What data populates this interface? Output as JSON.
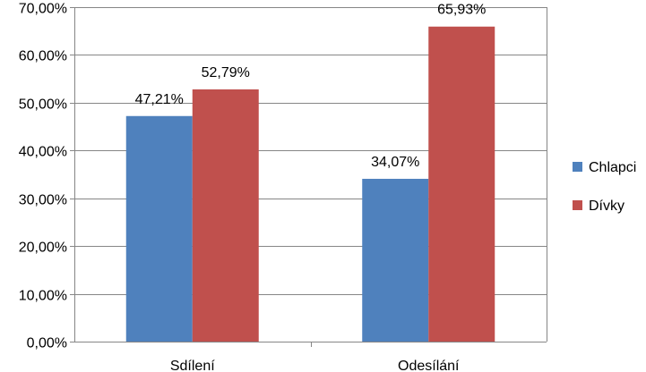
{
  "chart_data": {
    "type": "bar",
    "categories": [
      "Sdílení",
      "Odesílání"
    ],
    "series": [
      {
        "name": "Chlapci",
        "values": [
          47.21,
          34.07
        ],
        "labels": [
          "47,21%",
          "34,07%"
        ],
        "color": "#4F81BD"
      },
      {
        "name": "Dívky",
        "values": [
          52.79,
          65.93
        ],
        "labels": [
          "52,79%",
          "65,93%"
        ],
        "color": "#C0504D"
      }
    ],
    "ylim": [
      0,
      70
    ],
    "yticks": [
      0,
      10,
      20,
      30,
      40,
      50,
      60,
      70
    ],
    "ytick_labels": [
      "0,00%",
      "10,00%",
      "20,00%",
      "30,00%",
      "40,00%",
      "50,00%",
      "60,00%",
      "70,00%"
    ],
    "grid": true,
    "legend": "right"
  }
}
